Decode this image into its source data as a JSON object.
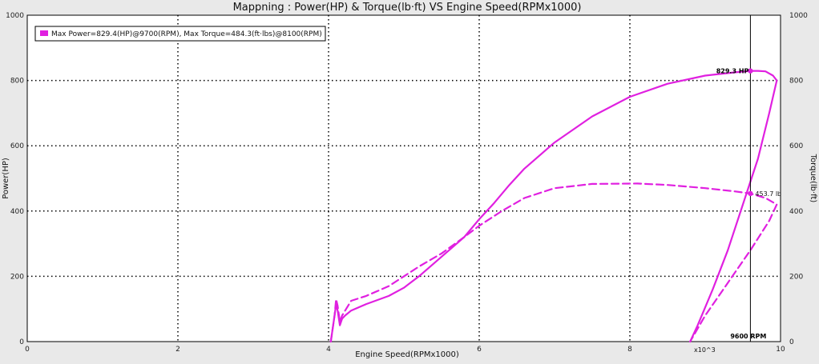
{
  "chart_data": {
    "type": "line",
    "title": "Mappning : Power(HP) & Torque(lb·ft) VS Engine Speed(RPMx1000)",
    "xlabel": "Engine Speed(RPMx1000)",
    "ylabel": "Power(HP)",
    "ylabel_right": "Torque(lb·ft)",
    "x_scale_note": "x10^3",
    "xlim": [
      0,
      10
    ],
    "ylim": [
      0,
      1000
    ],
    "ylim_right": [
      0,
      1000
    ],
    "x_ticks": [
      "0",
      "2",
      "4",
      "6",
      "8",
      "10"
    ],
    "y_ticks": [
      "0",
      "200",
      "400",
      "600",
      "800",
      "1000"
    ],
    "grid": true,
    "legend_position": "top-left",
    "legend_text": "Max Power=829.4(HP)@9700(RPM), Max Torque=484.3(ft·lbs)@8100(RPM)",
    "series_color": "#e020e0",
    "cursor": {
      "x": 9.6,
      "label": "9600 RPM",
      "power_label": "829.3 HP",
      "power_value": 829.3,
      "torque_label": "453.7 lb",
      "torque_value": 453.7
    },
    "series": [
      {
        "style": "solid",
        "axis": "left",
        "x": [
          4.03,
          4.08,
          4.1,
          4.12,
          4.15,
          4.18,
          4.22,
          4.3,
          4.5,
          4.8,
          5.0,
          5.2,
          5.5,
          5.8,
          6.0,
          6.2,
          6.4,
          6.6,
          6.8,
          7.0,
          7.5,
          8.0,
          8.5,
          9.0,
          9.4,
          9.6,
          9.7,
          9.8,
          9.9,
          9.95,
          9.85,
          9.7,
          9.5,
          9.3,
          9.1,
          8.9,
          8.8
        ],
        "y": [
          0,
          80,
          115,
          95,
          50,
          70,
          80,
          95,
          115,
          140,
          165,
          200,
          260,
          320,
          375,
          425,
          480,
          530,
          570,
          610,
          690,
          750,
          790,
          815,
          825,
          829.3,
          829.4,
          828,
          815,
          800,
          700,
          560,
          420,
          280,
          160,
          50,
          0
        ]
      },
      {
        "style": "dashed",
        "axis": "right",
        "x": [
          4.03,
          4.08,
          4.1,
          4.12,
          4.15,
          4.18,
          4.22,
          4.3,
          4.5,
          4.8,
          5.0,
          5.2,
          5.5,
          5.8,
          6.0,
          6.3,
          6.6,
          7.0,
          7.5,
          8.0,
          8.1,
          8.5,
          9.0,
          9.4,
          9.6,
          9.8,
          9.95,
          9.85,
          9.6,
          9.3,
          9.0,
          8.8
        ],
        "y": [
          0,
          80,
          130,
          110,
          60,
          80,
          95,
          125,
          140,
          170,
          200,
          230,
          270,
          320,
          355,
          400,
          440,
          470,
          483,
          484,
          484.3,
          480,
          470,
          460,
          453.7,
          440,
          420,
          370,
          280,
          180,
          80,
          0
        ]
      }
    ]
  }
}
